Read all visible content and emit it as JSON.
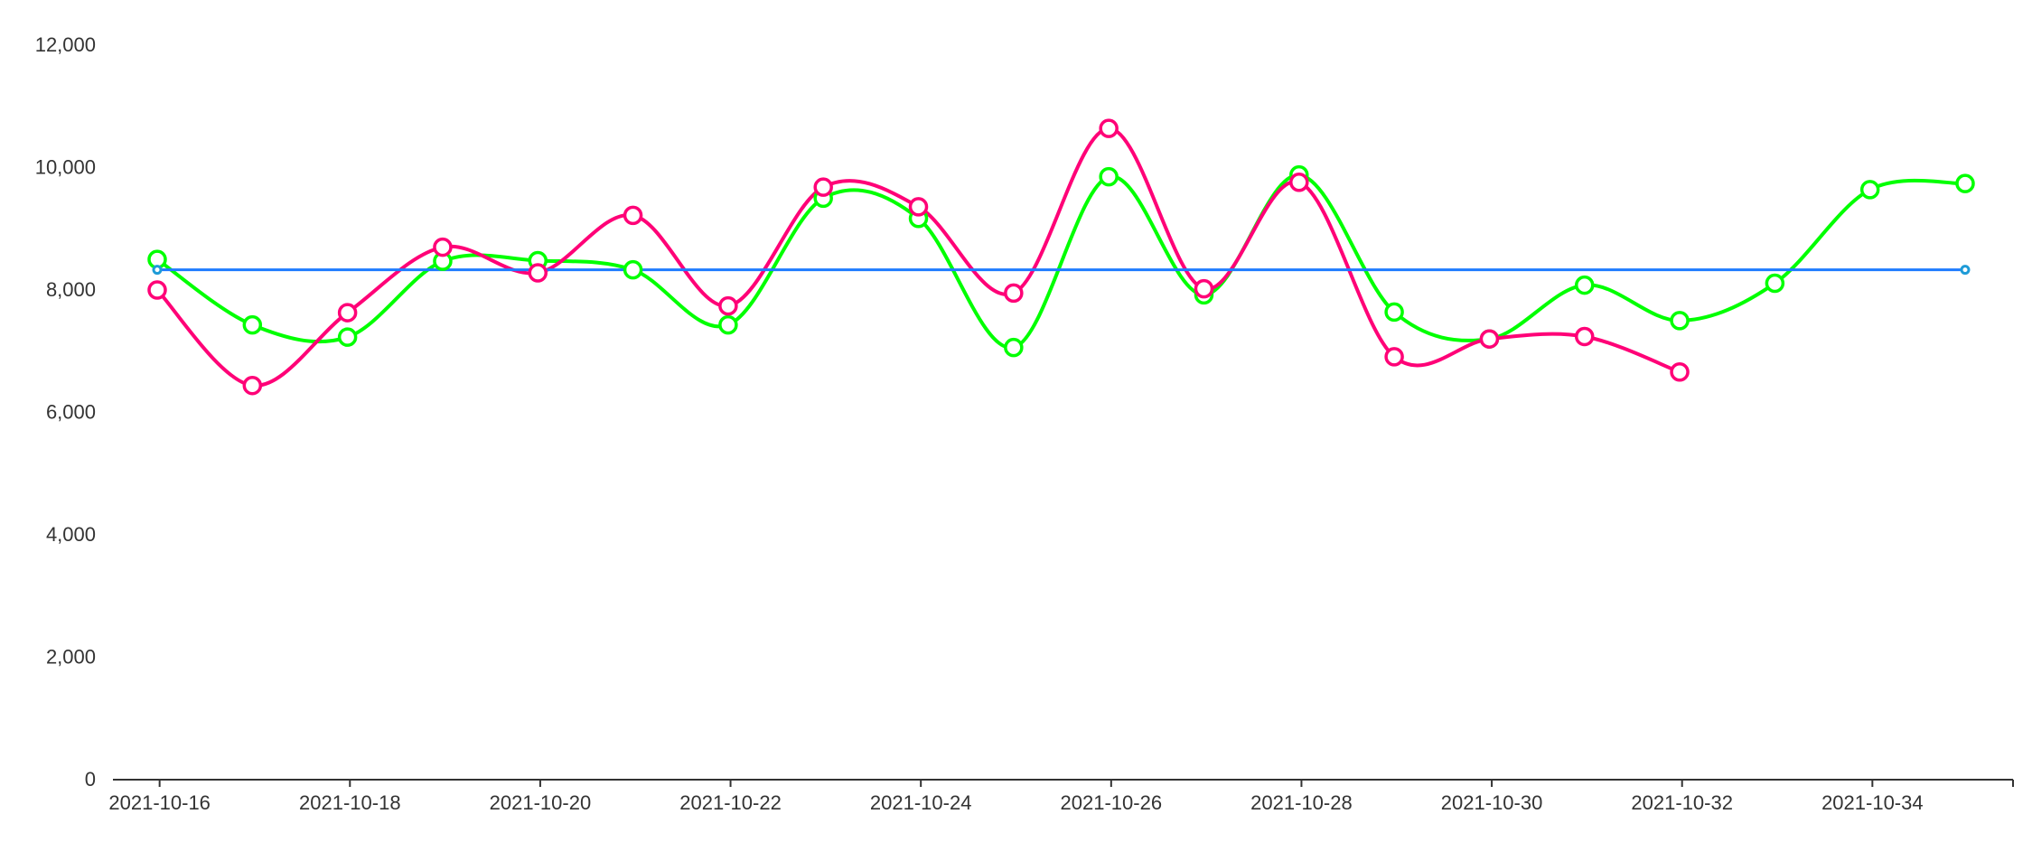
{
  "chart_data": {
    "type": "line",
    "x": [
      "2021-10-16",
      "2021-10-17",
      "2021-10-18",
      "2021-10-19",
      "2021-10-20",
      "2021-10-21",
      "2021-10-22",
      "2021-10-23",
      "2021-10-24",
      "2021-10-25",
      "2021-10-26",
      "2021-10-27",
      "2021-10-28",
      "2021-10-29",
      "2021-10-30",
      "2021-10-31",
      "2021-10-32",
      "2021-10-33",
      "2021-10-34",
      "2021-10-35"
    ],
    "x_tick_labels": [
      "2021-10-16",
      "2021-10-18",
      "2021-10-20",
      "2021-10-22",
      "2021-10-24",
      "2021-10-26",
      "2021-10-28",
      "2021-10-30",
      "2021-10-32",
      "2021-10-34"
    ],
    "y_tick_labels": [
      "0",
      "2,000",
      "4,000",
      "6,000",
      "8,000",
      "10,000",
      "12,000"
    ],
    "ylim": [
      0,
      12000
    ],
    "grid": false,
    "series": [
      {
        "color": "#00ff00",
        "smooth": true,
        "markers": true,
        "values": [
          8500,
          7430,
          7230,
          8470,
          8480,
          8330,
          7430,
          9500,
          9170,
          7060,
          9850,
          7920,
          9880,
          7640,
          7200,
          8080,
          7500,
          8110,
          9640,
          9740
        ]
      },
      {
        "color": "#ff0077",
        "smooth": true,
        "markers": true,
        "values": [
          8000,
          6440,
          7630,
          8700,
          8280,
          9220,
          7740,
          9680,
          9360,
          7950,
          10640,
          8020,
          9760,
          6910,
          7200,
          7240,
          6660,
          null,
          null,
          null
        ]
      },
      {
        "color": "#1e7bff",
        "smooth": false,
        "markers": false,
        "values": [
          8330,
          8330,
          8330,
          8330,
          8330,
          8330,
          8330,
          8330,
          8330,
          8330,
          8330,
          8330,
          8330,
          8330,
          8330,
          8330,
          8330,
          8330,
          8330,
          8330
        ]
      }
    ]
  }
}
